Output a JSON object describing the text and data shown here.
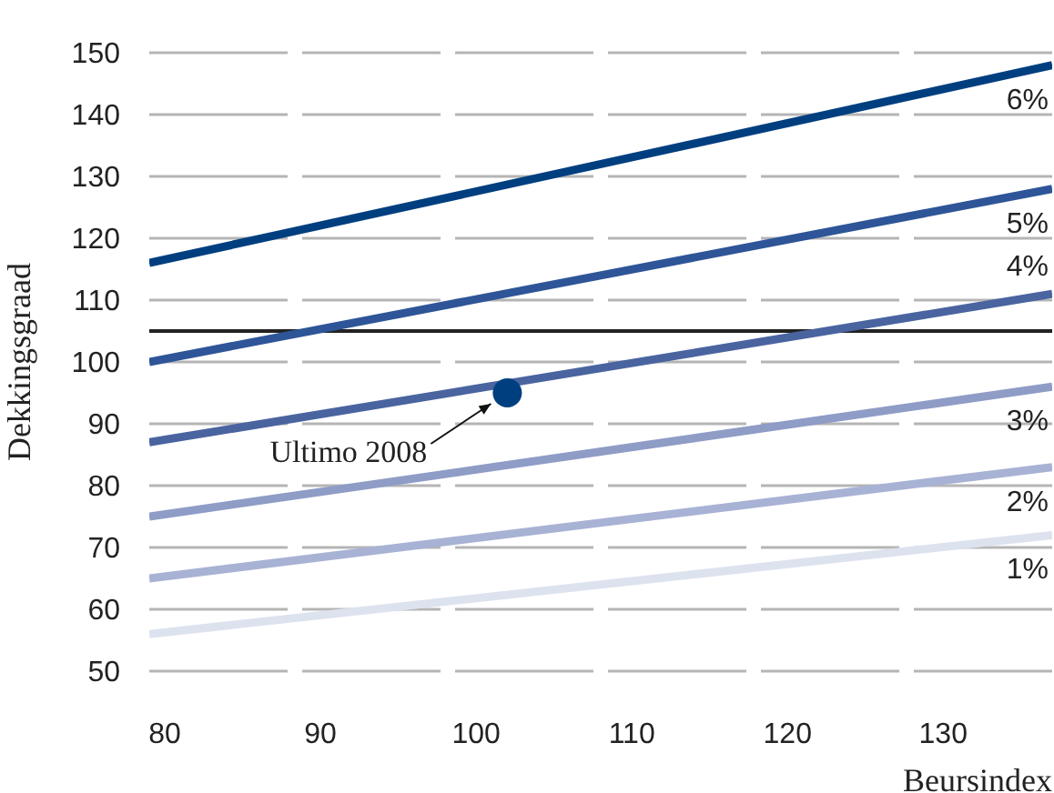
{
  "chart_data": {
    "type": "line",
    "xlabel": "Beursindex",
    "ylabel": "Dekkingsgraad",
    "xlim": [
      79,
      137
    ],
    "ylim": [
      50,
      150
    ],
    "xticks": [
      80,
      90,
      100,
      110,
      120,
      130
    ],
    "yticks": [
      50,
      60,
      70,
      80,
      90,
      100,
      110,
      120,
      130,
      140,
      150
    ],
    "grid": "y",
    "legend": false,
    "line_style": "solid",
    "series": [
      {
        "name": "6%",
        "color": "#003f7f",
        "x": [
          79,
          137
        ],
        "values": [
          116,
          148
        ]
      },
      {
        "name": "5%",
        "color": "#2e5597",
        "x": [
          79,
          137
        ],
        "values": [
          100,
          128
        ]
      },
      {
        "name": "4%",
        "color": "#4a64a0",
        "x": [
          79,
          137
        ],
        "values": [
          87,
          111
        ]
      },
      {
        "name": "3%",
        "color": "#8e9cc6",
        "x": [
          79,
          137
        ],
        "values": [
          75,
          96
        ]
      },
      {
        "name": "2%",
        "color": "#a8b2d4",
        "x": [
          79,
          137
        ],
        "values": [
          65,
          83
        ]
      },
      {
        "name": "1%",
        "color": "#dde2ef",
        "x": [
          79,
          137
        ],
        "values": [
          56,
          72
        ]
      },
      {
        "type": "scatter",
        "marker": "circle",
        "color": "#003f7f",
        "x": [
          102
        ],
        "values": [
          95
        ]
      }
    ],
    "ref_lines": [
      {
        "axis": "y",
        "value": 105,
        "color": "#222222"
      }
    ],
    "annotations": [
      {
        "text": "Ultimo 2008",
        "x": 102,
        "y": 95
      }
    ]
  }
}
